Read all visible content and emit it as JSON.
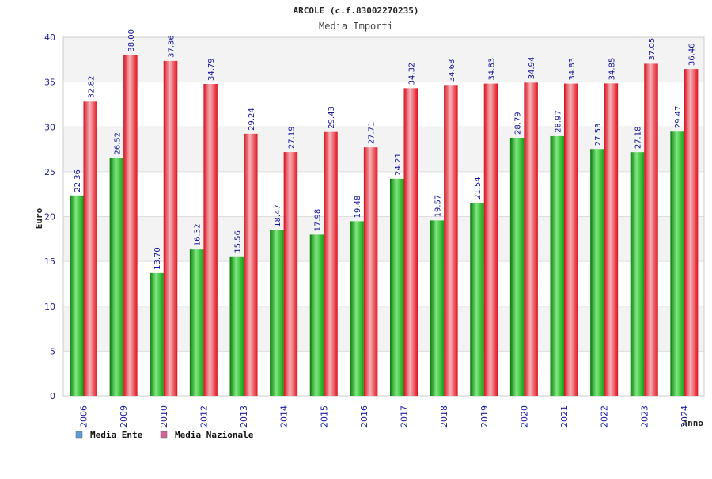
{
  "chart_data": {
    "type": "bar",
    "title": "ARCOLE (c.f.83002270235)",
    "subtitle": "Media Importi",
    "xlabel": "Anno",
    "ylabel": "Euro",
    "ylim": [
      0,
      40
    ],
    "yticks": [
      0,
      5,
      10,
      15,
      20,
      25,
      30,
      35,
      40
    ],
    "ytick_labels": [
      "0",
      "5",
      "10",
      "15",
      "20",
      "25",
      "30",
      "35",
      "40"
    ],
    "grid": true,
    "categories": [
      "2006",
      "2009",
      "2010",
      "2012",
      "2013",
      "2014",
      "2015",
      "2016",
      "2017",
      "2018",
      "2019",
      "2020",
      "2021",
      "2022",
      "2023",
      "2024"
    ],
    "series": [
      {
        "name": "Media Ente",
        "color": "#1fb01f",
        "values": [
          22.36,
          26.52,
          13.7,
          16.32,
          15.56,
          18.47,
          17.98,
          19.48,
          24.21,
          19.57,
          21.54,
          28.79,
          28.97,
          27.53,
          27.18,
          29.47
        ],
        "labels": [
          "22.36",
          "26.52",
          "13.70",
          "16.32",
          "15.56",
          "18.47",
          "17.98",
          "19.48",
          "24.21",
          "19.57",
          "21.54",
          "28.79",
          "28.97",
          "27.53",
          "27.18",
          "29.47"
        ]
      },
      {
        "name": "Media Nazionale",
        "color": "#e8192c",
        "values": [
          32.82,
          38.0,
          37.36,
          34.79,
          29.24,
          27.19,
          29.43,
          27.71,
          34.32,
          34.68,
          34.83,
          34.94,
          34.83,
          34.85,
          37.05,
          36.46
        ],
        "labels": [
          "32.82",
          "38.00",
          "37.36",
          "34.79",
          "29.24",
          "27.19",
          "29.43",
          "27.71",
          "34.32",
          "34.68",
          "34.83",
          "34.94",
          "34.83",
          "34.85",
          "37.05",
          "36.46"
        ]
      }
    ],
    "legend": {
      "placement": "bottom-left",
      "entries": [
        {
          "label": "Media Ente",
          "swatch_color": "#5b9bd5"
        },
        {
          "label": "Media Nazionale",
          "swatch_color": "#d0649a"
        }
      ]
    }
  }
}
